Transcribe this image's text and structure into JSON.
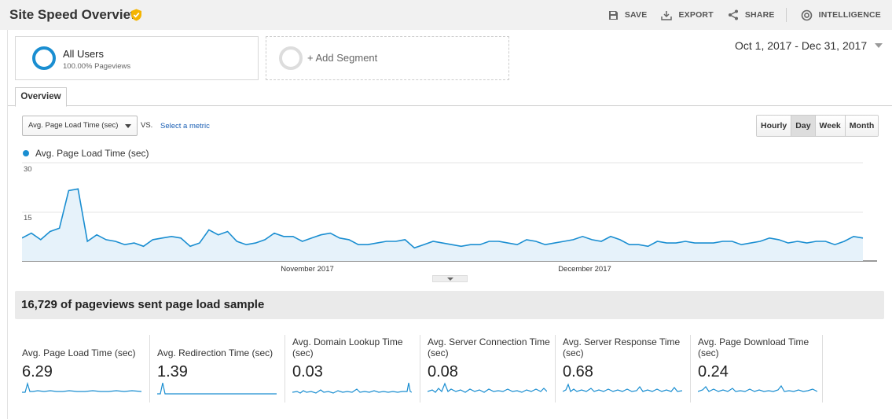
{
  "page": {
    "title": "Site Speed Overview"
  },
  "actions": [
    {
      "label": "SAVE",
      "icon": "save-icon"
    },
    {
      "label": "EXPORT",
      "icon": "export-icon"
    },
    {
      "label": "SHARE",
      "icon": "share-icon"
    },
    {
      "label": "INTELLIGENCE",
      "icon": "intelligence-icon"
    }
  ],
  "segments": {
    "primary": {
      "name": "All Users",
      "sub": "100.00% Pageviews"
    },
    "add": {
      "label": "+ Add Segment"
    }
  },
  "date_range": "Oct 1, 2017 - Dec 31, 2017",
  "tabs": [
    {
      "label": "Overview"
    }
  ],
  "metric_picker": {
    "selected": "Avg. Page Load Time (sec)",
    "vs": "VS.",
    "select_metric": "Select a metric"
  },
  "granularity": [
    {
      "label": "Hourly",
      "active": false
    },
    {
      "label": "Day",
      "active": true
    },
    {
      "label": "Week",
      "active": false
    },
    {
      "label": "Month",
      "active": false
    }
  ],
  "colors": {
    "series": "#1a8ed1",
    "area": "#e6f2fa"
  },
  "chart_data": {
    "type": "area",
    "series": [
      {
        "name": "Avg. Page Load Time (sec)"
      }
    ],
    "y_ticks": [
      "30",
      "15"
    ],
    "x_labels": [
      "November 2017",
      "December 2017"
    ],
    "ylim": [
      0,
      30
    ],
    "grid": true,
    "legend": "top-left"
  },
  "sample": {
    "text": "16,729 of pageviews sent page load sample"
  },
  "kpis": [
    {
      "label": "Avg. Page Load Time (sec)",
      "value": "6.29"
    },
    {
      "label": "Avg. Redirection Time (sec)",
      "value": "1.39"
    },
    {
      "label": "Avg. Domain Lookup Time (sec)",
      "value": "0.03"
    },
    {
      "label": "Avg. Server Connection Time (sec)",
      "value": "0.08"
    },
    {
      "label": "Avg. Server Response Time (sec)",
      "value": "0.68"
    },
    {
      "label": "Avg. Page Download Time (sec)",
      "value": "0.24"
    }
  ]
}
